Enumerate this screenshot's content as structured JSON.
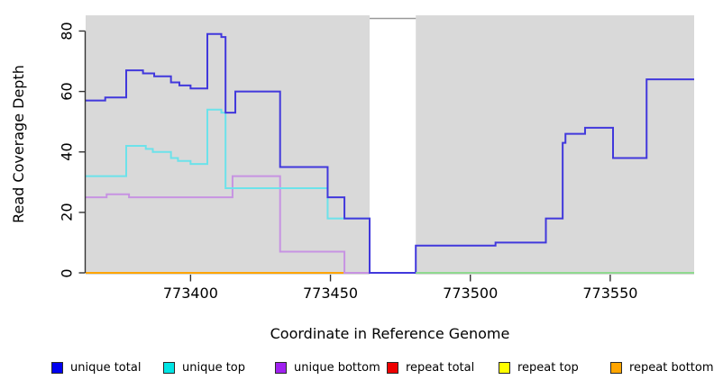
{
  "chart_data": {
    "type": "line",
    "subtype": "step",
    "title": "",
    "xlabel": "Coordinate in Reference Genome",
    "ylabel": "Read Coverage Depth",
    "xlim": [
      773362.5,
      773580
    ],
    "ylim": [
      0,
      85.2
    ],
    "x_ticks": [
      773400,
      773450,
      773500,
      773550
    ],
    "y_ticks": [
      0,
      20,
      40,
      60,
      80
    ],
    "background": "#d9d9d9",
    "grid": false,
    "legend_position": "bottom",
    "gap_region": {
      "from": 773464,
      "to": 773480.5,
      "cap_color": "#999999"
    },
    "zero_overlay": {
      "from": 773480.5,
      "to": 773580,
      "color": "#8fd98f"
    },
    "series": [
      {
        "name": "repeat total",
        "line_color": "#e60000",
        "points": [
          [
            773362.5,
            0
          ]
        ],
        "end": 773580
      },
      {
        "name": "repeat top",
        "line_color": "#ffff00",
        "points": [
          [
            773362.5,
            0
          ]
        ],
        "end": 773580
      },
      {
        "name": "repeat bottom",
        "line_color": "#ffa500",
        "points": [
          [
            773362.5,
            0
          ]
        ],
        "end": 773580
      },
      {
        "name": "unique bottom",
        "line_color": "#c793e2",
        "points": [
          [
            773362.5,
            25
          ],
          [
            773370,
            26
          ],
          [
            773378,
            25
          ],
          [
            773415,
            32
          ],
          [
            773432,
            7
          ],
          [
            773455,
            0
          ]
        ],
        "end": 773580
      },
      {
        "name": "unique top",
        "line_color": "#6ce2ea",
        "points": [
          [
            773362.5,
            32
          ],
          [
            773377,
            42
          ],
          [
            773384,
            41
          ],
          [
            773386.5,
            40
          ],
          [
            773393,
            38
          ],
          [
            773395.5,
            37
          ],
          [
            773400,
            36
          ],
          [
            773406,
            54
          ],
          [
            773411,
            53
          ],
          [
            773412.5,
            28
          ],
          [
            773449,
            18
          ],
          [
            773464,
            0
          ]
        ],
        "end": 773580
      },
      {
        "name": "unique total",
        "line_color": "#4138dc",
        "points": [
          [
            773362.5,
            57
          ],
          [
            773369.5,
            58
          ],
          [
            773377,
            67
          ],
          [
            773383,
            66
          ],
          [
            773387,
            65
          ],
          [
            773393,
            63
          ],
          [
            773396,
            62
          ],
          [
            773400,
            61
          ],
          [
            773406,
            79
          ],
          [
            773411,
            78
          ],
          [
            773412.5,
            53
          ],
          [
            773416,
            60
          ],
          [
            773432,
            35
          ],
          [
            773449,
            25
          ],
          [
            773455,
            18
          ],
          [
            773464,
            0
          ],
          [
            773480.5,
            9
          ],
          [
            773509,
            10
          ],
          [
            773527,
            18
          ],
          [
            773533,
            43
          ],
          [
            773534,
            46
          ],
          [
            773541,
            48
          ],
          [
            773551,
            38
          ],
          [
            773563,
            64
          ]
        ],
        "end": 773580
      }
    ],
    "legend": {
      "entries": [
        {
          "label": "unique total",
          "color": "#0101ef"
        },
        {
          "label": "unique top",
          "color": "#00e5e5"
        },
        {
          "label": "unique bottom",
          "color": "#a021f0"
        },
        {
          "label": "repeat total",
          "color": "#ee0000"
        },
        {
          "label": "repeat top",
          "color": "#ffff00"
        },
        {
          "label": "repeat bottom",
          "color": "#ffa500"
        }
      ]
    }
  }
}
